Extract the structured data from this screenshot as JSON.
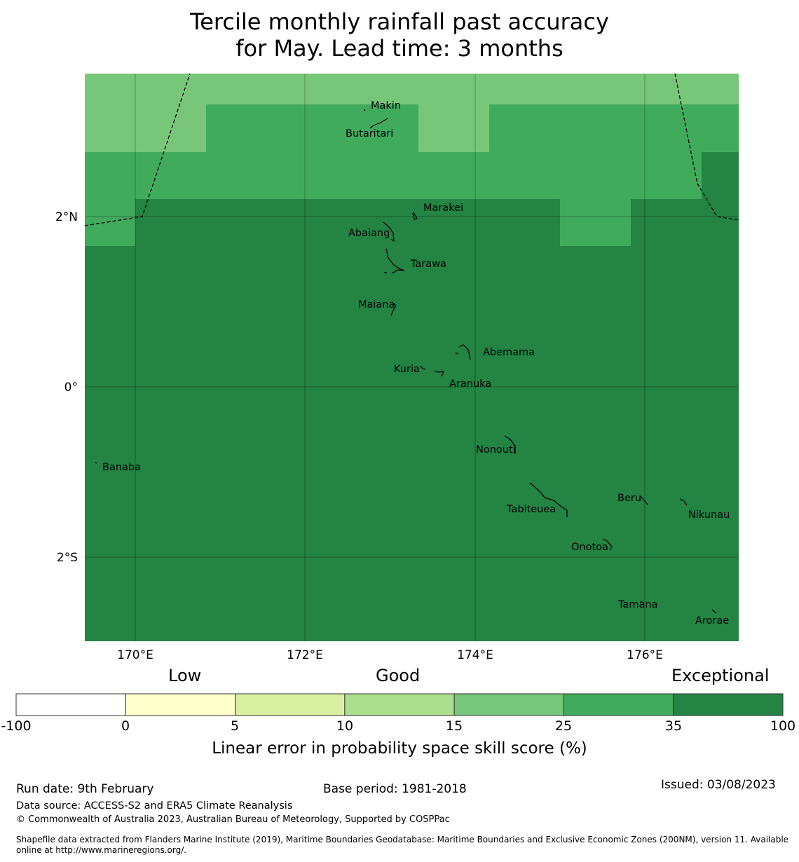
{
  "title": {
    "line1": "Tercile monthly rainfall past accuracy",
    "line2": "for May. Lead time: 3 months"
  },
  "map": {
    "x_axis_labels": [
      "170°E",
      "172°E",
      "174°E",
      "176°E"
    ],
    "y_axis_labels": [
      "2°N",
      "0°",
      "2°S"
    ],
    "islands": [
      "Makin",
      "Butaritari",
      "Marakei",
      "Abaiang",
      "Tarawa",
      "Maiana",
      "Abemama",
      "Kuria",
      "Aranuka",
      "Nonouti",
      "Banaba",
      "Beru",
      "Tabiteuea",
      "Nikunau",
      "Onotoa",
      "Tamana",
      "Arorae"
    ],
    "skill_regions": [
      {
        "area": "far north band",
        "category": "15 to 25"
      },
      {
        "area": "north",
        "category": "25 to 35"
      },
      {
        "area": "central and south",
        "category": "35 to 100"
      }
    ]
  },
  "colorbar": {
    "categories": [
      "Low",
      "Good",
      "Exceptional"
    ],
    "ticks": [
      "-100",
      "0",
      "5",
      "10",
      "15",
      "25",
      "35",
      "100"
    ],
    "colors": [
      "#ffffff",
      "#ffffcc",
      "#d9f0a3",
      "#addd8e",
      "#78c679",
      "#41ab5d",
      "#238443"
    ],
    "label": "Linear error in probability space skill score (%)"
  },
  "footer": {
    "run_date": "Run date: 9th February",
    "base_period": "Base period: 1981-2018",
    "issued": "Issued: 03/08/2023",
    "data_source": "Data source: ACCESS-S2 and ERA5 Climate Reanalysis",
    "copyright": "© Commonwealth of Australia 2023, Australian Bureau of Meteorology, Supported by COSPPac",
    "shapefile": "Shapefile data extracted from Flanders Marine Institute (2019), Maritime Boundaries Geodatabase: Maritime Boundaries and Exclusive Economic Zones (200NM), version 11. Available online at http://www.marineregions.org/."
  }
}
